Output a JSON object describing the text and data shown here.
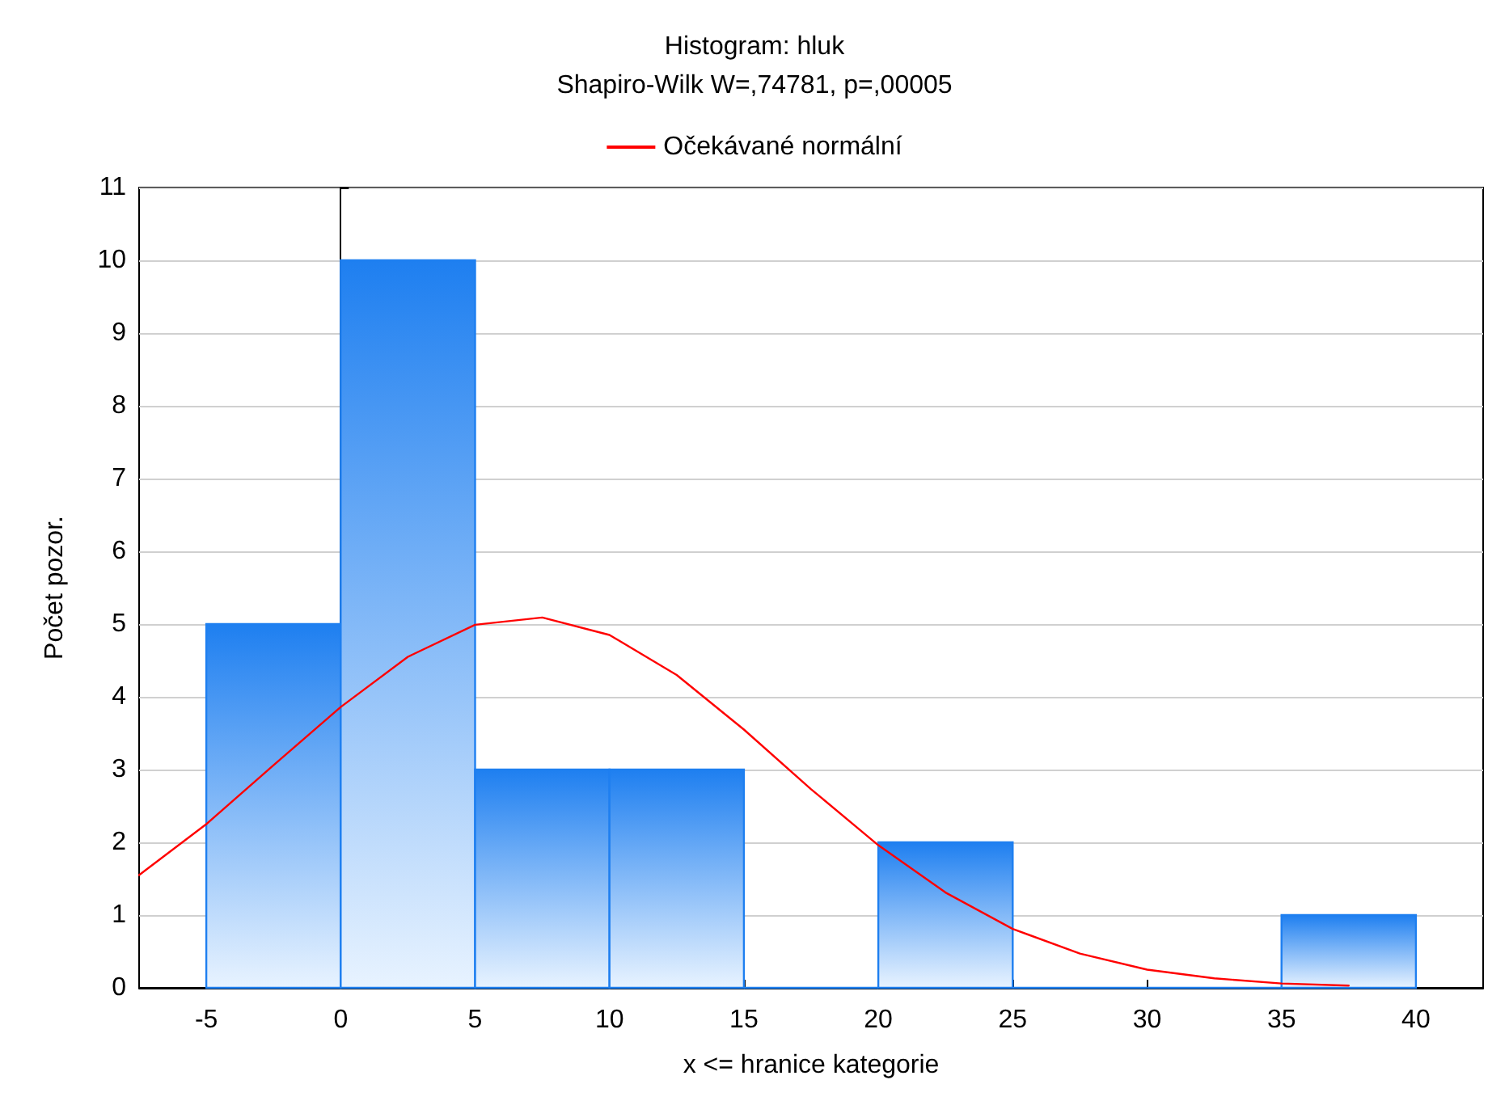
{
  "chart_data": {
    "type": "histogram",
    "title": "Histogram: hluk",
    "subtitle": "Shapiro-Wilk W=,74781, p=,00005",
    "xlabel": "x <= hranice kategorie",
    "ylabel": "Počet pozor.",
    "bins": [
      -5,
      0,
      5,
      10,
      15,
      20,
      25,
      30,
      35,
      40
    ],
    "values": [
      5,
      10,
      3,
      3,
      0,
      2,
      0,
      0,
      1
    ],
    "color": "#1e7ff0",
    "series": [
      {
        "type": "line",
        "name": "Očekávané normální",
        "color": "#ff0000",
        "x": [
          -7.5,
          -5,
          -2.5,
          0,
          2.5,
          5,
          7.5,
          10,
          12.5,
          15,
          17.5,
          20,
          22.5,
          25,
          27.5,
          30,
          32.5,
          35,
          37.5
        ],
        "values": [
          1.55,
          2.25,
          3.06,
          3.86,
          4.55,
          4.99,
          5.09,
          4.85,
          4.3,
          3.55,
          2.73,
          1.96,
          1.31,
          0.81,
          0.47,
          0.25,
          0.13,
          0.06,
          0.03
        ]
      }
    ],
    "xlim": [
      -7.5,
      42.5
    ],
    "xticks": [
      -5,
      0,
      5,
      10,
      15,
      20,
      25,
      30,
      35,
      40
    ],
    "ylim": [
      0,
      11
    ],
    "yticks": [
      0,
      1,
      2,
      3,
      4,
      5,
      6,
      7,
      8,
      9,
      10,
      11
    ],
    "grid": "y",
    "legend": "top",
    "marker": "none",
    "line_style": "solid"
  }
}
